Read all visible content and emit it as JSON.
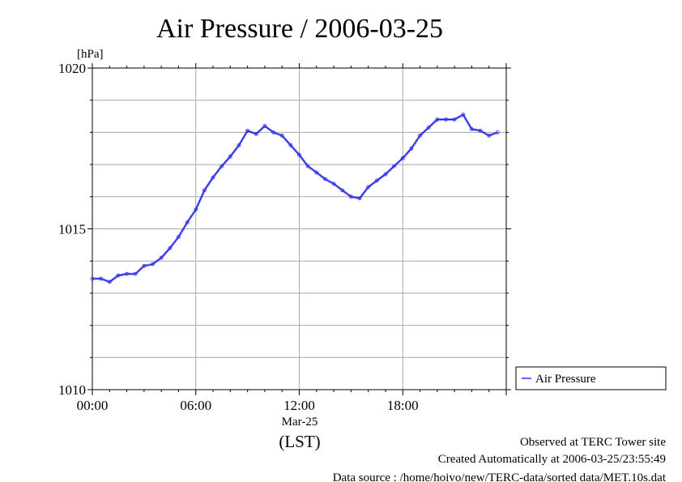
{
  "chart_data": {
    "type": "line",
    "title": "Air Pressure / 2006-03-25",
    "ylabel": "[hPa]",
    "xlabel": "(LST)",
    "x_date_label": "Mar-25",
    "ylim": [
      1010,
      1020
    ],
    "xlim": [
      "00:00",
      "24:00"
    ],
    "y_ticks": [
      "1010",
      "1015",
      "1020"
    ],
    "x_ticks": [
      "00:00",
      "06:00",
      "12:00",
      "18:00"
    ],
    "grid": true,
    "legend": "right",
    "series": [
      {
        "name": "Air Pressure",
        "color": "#3333ff",
        "x": [
          "00:00",
          "00:30",
          "01:00",
          "01:30",
          "02:00",
          "02:30",
          "03:00",
          "03:30",
          "04:00",
          "04:30",
          "05:00",
          "05:30",
          "06:00",
          "06:30",
          "07:00",
          "07:30",
          "08:00",
          "08:30",
          "09:00",
          "09:30",
          "10:00",
          "10:30",
          "11:00",
          "11:30",
          "12:00",
          "12:30",
          "13:00",
          "13:30",
          "14:00",
          "14:30",
          "15:00",
          "15:30",
          "16:00",
          "16:30",
          "17:00",
          "17:30",
          "18:00",
          "18:30",
          "19:00",
          "19:30",
          "20:00",
          "20:30",
          "21:00",
          "21:30",
          "22:00",
          "22:30",
          "23:00",
          "23:30"
        ],
        "values": [
          1013.45,
          1013.45,
          1013.35,
          1013.55,
          1013.6,
          1013.6,
          1013.85,
          1013.9,
          1014.1,
          1014.4,
          1014.75,
          1015.2,
          1015.6,
          1016.2,
          1016.6,
          1016.95,
          1017.25,
          1017.6,
          1018.05,
          1017.95,
          1018.2,
          1018.0,
          1017.9,
          1017.6,
          1017.3,
          1016.95,
          1016.75,
          1016.55,
          1016.4,
          1016.2,
          1016.0,
          1015.95,
          1016.3,
          1016.5,
          1016.7,
          1016.95,
          1017.2,
          1017.5,
          1017.9,
          1018.15,
          1018.4,
          1018.4,
          1018.4,
          1018.55,
          1018.1,
          1018.05,
          1017.9,
          1018.0
        ]
      }
    ]
  },
  "footer": {
    "line1": "Observed at TERC Tower site",
    "line2": "Created Automatically at 2006-03-25/23:55:49",
    "line3": "Data source : /home/hoivo/new/TERC-data/sorted  data/MET.10s.dat"
  }
}
